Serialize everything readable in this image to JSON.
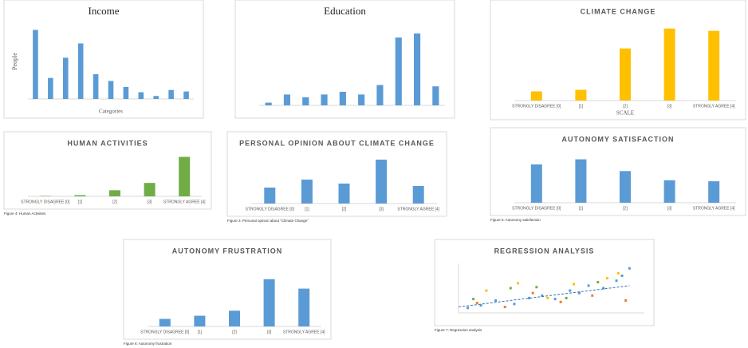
{
  "chart_data": [
    {
      "type": "bar",
      "title": "Income",
      "ylabel": "People",
      "xlabel": "Categories",
      "categories": [
        null,
        null,
        null,
        null,
        null,
        null,
        null,
        null,
        null,
        null,
        null
      ],
      "values": [
        92,
        28,
        55,
        74,
        33,
        24,
        16,
        9,
        4,
        12,
        10
      ],
      "color": "#5b9bd5",
      "ylim": [
        0,
        100
      ]
    },
    {
      "type": "bar",
      "title": "Education",
      "categories": [
        null,
        null,
        null,
        null,
        null,
        null,
        null,
        null,
        null,
        null
      ],
      "values": [
        2,
        8,
        6,
        8,
        10,
        8,
        15,
        50,
        53,
        14
      ],
      "color": "#5b9bd5",
      "ylim": [
        0,
        60
      ]
    },
    {
      "type": "bar",
      "title": "CLIMATE CHANGE",
      "xlabel": "SCALE",
      "categories": [
        "STRONGLY DISAGREE [0]",
        "[1]",
        "[2]",
        "[3]",
        "STRONGLY AGREE [4]"
      ],
      "values": [
        12,
        14,
        68,
        94,
        91
      ],
      "color": "#ffc000",
      "ylim": [
        0,
        100
      ]
    },
    {
      "type": "bar",
      "title": "HUMAN ACTIVITIES",
      "caption": "Figure 4: Human Activities",
      "categories": [
        "STRONGLY DISAGREE [0]",
        "[1]",
        "[2]",
        "[3]",
        "STRONGLY AGREE [4]"
      ],
      "values": [
        1,
        3,
        15,
        33,
        97
      ],
      "color": "#70ad47",
      "ylim": [
        0,
        100
      ]
    },
    {
      "type": "bar",
      "title": "PERSONAL OPINION ABOUT CLIMATE CHANGE",
      "caption": "Figure 3: Personal opinion about \"Climate Change\"",
      "categories": [
        "STRONGLY DISAGREE [0]",
        "[1]",
        "[2]",
        "[3]",
        "STRONGLY AGREE [4]"
      ],
      "values": [
        20,
        30,
        25,
        55,
        22
      ],
      "color": "#5b9bd5",
      "ylim": [
        0,
        60
      ]
    },
    {
      "type": "bar",
      "title": "AUTONOMY SATISFACTION",
      "caption": "Figure 5: Autonomy satisfaction",
      "categories": [
        "STRONGLY DISAGREE [0]",
        "[1]",
        "[2]",
        "[3]",
        "STRONGLY AGREE [4]"
      ],
      "values": [
        75,
        85,
        62,
        44,
        42
      ],
      "color": "#5b9bd5",
      "ylim": [
        0,
        100
      ]
    },
    {
      "type": "bar",
      "title": "AUTONOMY FRUSTRATION",
      "caption": "Figure 6: Autonomy frustration",
      "categories": [
        "STRONGLY DISAGREE [0]",
        "[1]",
        "[2]",
        "[3]",
        "STRONGLY AGREE [4]"
      ],
      "values": [
        12,
        17,
        25,
        75,
        60
      ],
      "color": "#5b9bd5",
      "ylim": [
        0,
        100
      ]
    },
    {
      "type": "scatter",
      "title": "REGRESSION ANALYSIS",
      "caption": "Figure 7: Regression analysis",
      "xlim": [
        0,
        100
      ],
      "ylim": [
        0,
        100
      ],
      "series": [
        {
          "color": "#5b9bd5",
          "x": [
            5,
            12,
            20,
            30,
            38,
            45,
            52,
            60,
            65,
            70,
            78,
            85,
            88,
            92
          ],
          "values": [
            10,
            15,
            25,
            18,
            30,
            35,
            28,
            45,
            40,
            55,
            50,
            65,
            75,
            90
          ]
        },
        {
          "color": "#ed7d31",
          "x": [
            10,
            25,
            40,
            55,
            72,
            90
          ],
          "values": [
            20,
            12,
            40,
            22,
            35,
            25
          ]
        },
        {
          "color": "#ffc000",
          "x": [
            15,
            32,
            48,
            62,
            80,
            86
          ],
          "values": [
            45,
            60,
            30,
            58,
            70,
            80
          ]
        },
        {
          "color": "#70ad47",
          "x": [
            8,
            28,
            42,
            58,
            75
          ],
          "values": [
            28,
            50,
            52,
            30,
            62
          ]
        }
      ],
      "trend": {
        "x": [
          0,
          92
        ],
        "values": [
          12,
          55
        ]
      }
    }
  ]
}
